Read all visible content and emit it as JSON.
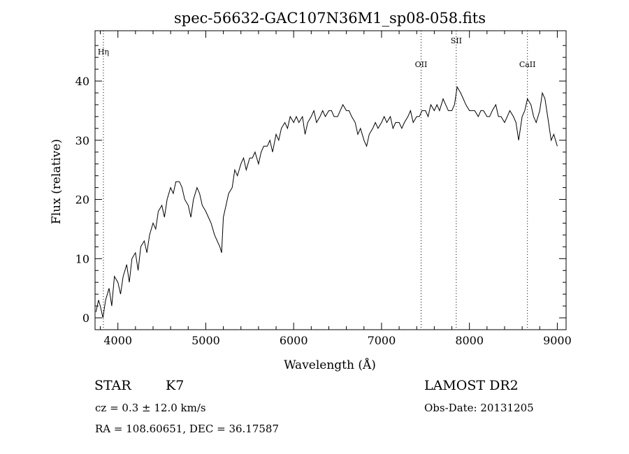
{
  "chart_data": {
    "type": "line",
    "title": "spec-56632-GAC107N36M1_sp08-058.fits",
    "xlabel": "Wavelength (Å)",
    "ylabel": "Flux (relative)",
    "xlim": [
      3740,
      9100
    ],
    "ylim": [
      -2,
      48.5
    ],
    "x_ticks": [
      4000,
      5000,
      6000,
      7000,
      8000,
      9000
    ],
    "y_ticks": [
      0,
      10,
      20,
      30,
      40
    ],
    "grid": false,
    "series": [
      {
        "x": [
          3750,
          3780,
          3800,
          3830,
          3860,
          3880,
          3900,
          3930,
          3960,
          4000,
          4030,
          4060,
          4100,
          4130,
          4160,
          4200,
          4230,
          4260,
          4300,
          4330,
          4360,
          4400,
          4430,
          4460,
          4500,
          4530,
          4560,
          4600,
          4630,
          4660,
          4700,
          4730,
          4760,
          4800,
          4830,
          4860,
          4900,
          4930,
          4960,
          5000,
          5030,
          5060,
          5100,
          5130,
          5160,
          5180,
          5200,
          5230,
          5260,
          5300,
          5330,
          5360,
          5400,
          5430,
          5460,
          5500,
          5530,
          5560,
          5600,
          5630,
          5660,
          5700,
          5730,
          5760,
          5800,
          5830,
          5860,
          5900,
          5930,
          5960,
          6000,
          6030,
          6060,
          6100,
          6130,
          6160,
          6200,
          6230,
          6260,
          6300,
          6330,
          6360,
          6400,
          6430,
          6460,
          6500,
          6530,
          6560,
          6600,
          6630,
          6660,
          6700,
          6730,
          6760,
          6800,
          6830,
          6860,
          6900,
          6930,
          6960,
          7000,
          7030,
          7060,
          7100,
          7130,
          7160,
          7200,
          7230,
          7260,
          7300,
          7330,
          7360,
          7400,
          7430,
          7460,
          7500,
          7530,
          7560,
          7600,
          7630,
          7660,
          7700,
          7730,
          7760,
          7800,
          7830,
          7860,
          7900,
          7930,
          7960,
          8000,
          8030,
          8060,
          8100,
          8130,
          8160,
          8200,
          8230,
          8260,
          8300,
          8330,
          8360,
          8400,
          8430,
          8460,
          8500,
          8530,
          8560,
          8600,
          8630,
          8660,
          8700,
          8730,
          8760,
          8800,
          8830,
          8860,
          8900,
          8930,
          8960,
          9000
        ],
        "values": [
          1,
          3,
          2,
          0,
          3,
          4,
          5,
          2,
          7,
          6,
          4,
          7,
          9,
          6,
          10,
          11,
          8,
          12,
          13,
          11,
          14,
          16,
          15,
          18,
          19,
          17,
          20,
          22,
          21,
          23,
          23,
          22,
          20,
          19,
          17,
          20,
          22,
          21,
          19,
          18,
          17,
          16,
          14,
          13,
          12,
          11,
          17,
          19,
          21,
          22,
          25,
          24,
          26,
          27,
          25,
          27,
          27,
          28,
          26,
          28,
          29,
          29,
          30,
          28,
          31,
          30,
          32,
          33,
          32,
          34,
          33,
          34,
          33,
          34,
          31,
          33,
          34,
          35,
          33,
          34,
          35,
          34,
          35,
          35,
          34,
          34,
          35,
          36,
          35,
          35,
          34,
          33,
          31,
          32,
          30,
          29,
          31,
          32,
          33,
          32,
          33,
          34,
          33,
          34,
          32,
          33,
          33,
          32,
          33,
          34,
          35,
          33,
          34,
          34,
          35,
          35,
          34,
          36,
          35,
          36,
          35,
          37,
          36,
          35,
          35,
          36,
          39,
          38,
          37,
          36,
          35,
          35,
          35,
          34,
          35,
          35,
          34,
          34,
          35,
          36,
          34,
          34,
          33,
          34,
          35,
          34,
          33,
          30,
          34,
          35,
          37,
          36,
          34,
          33,
          35,
          38,
          37,
          33,
          30,
          31,
          29
        ]
      }
    ],
    "annotations": [
      {
        "label": "Hη",
        "x": 3835
      },
      {
        "label": "OII",
        "x": 7450
      },
      {
        "label": "SII",
        "x": 7850
      },
      {
        "label": "CaII",
        "x": 8660
      }
    ]
  },
  "info": {
    "object_class": "STAR",
    "subclass": "K7",
    "survey": "LAMOST DR2",
    "cz": "cz = 0.3 ± 12.0 km/s",
    "obs_date": "Obs-Date: 20131205",
    "coords": "RA = 108.60651, DEC =  36.17587"
  }
}
